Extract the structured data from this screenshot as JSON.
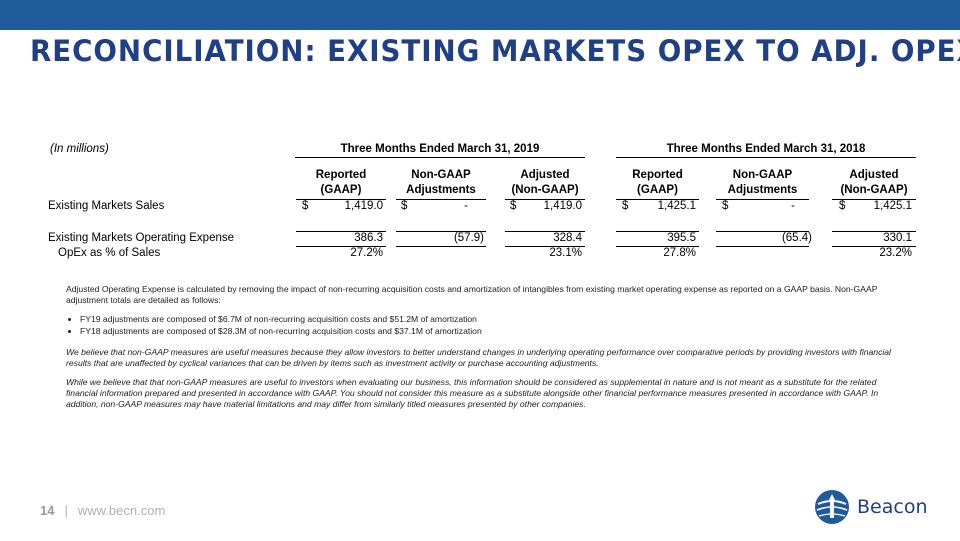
{
  "title": "RECONCILIATION: EXISTING MARKETS OPEX TO ADJ. OPEX",
  "table": {
    "unit_note": "(In millions)",
    "periods": [
      "Three Months Ended March 31, 2019",
      "Three Months Ended March 31, 2018"
    ],
    "columns": [
      {
        "line1": "Reported",
        "line2": "(GAAP)"
      },
      {
        "line1": "Non-GAAP",
        "line2": "Adjustments"
      },
      {
        "line1": "Adjusted",
        "line2": "(Non-GAAP)"
      },
      {
        "line1": "Reported",
        "line2": "(GAAP)"
      },
      {
        "line1": "Non-GAAP",
        "line2": "Adjustments"
      },
      {
        "line1": "Adjusted",
        "line2": "(Non-GAAP)"
      }
    ],
    "currency": "$",
    "rows": [
      {
        "label": "Existing Markets Sales",
        "values": [
          "1,419.0",
          "-",
          "1,419.0",
          "1,425.1",
          "-",
          "1,425.1"
        ]
      },
      {
        "label": "Existing Markets Operating Expense",
        "values": [
          "386.3",
          "(57.9)",
          "328.4",
          "395.5",
          "(65.4)",
          "330.1"
        ]
      },
      {
        "label": "OpEx as % of Sales",
        "values": [
          "27.2%",
          "",
          "23.1%",
          "27.8%",
          "",
          "23.2%"
        ]
      }
    ]
  },
  "notes": {
    "definition": "Adjusted Operating Expense is calculated by removing the impact of non-recurring acquisition costs and amortization of intangibles from existing market operating expense as reported on a GAAP basis. Non-GAAP adjustment totals are detailed as follows:",
    "bullets": [
      "FY19 adjustments are composed of $6.7M of non-recurring acquisition costs and $51.2M of amortization",
      "FY18 adjustments are composed of $28.3M of non-recurring acquisition costs and $37.1M of amortization"
    ],
    "belief": "We believe that non-GAAP measures are useful measures because they allow investors to better understand changes in underlying operating performance over comparative periods by providing investors with financial results that are unaffected by cyclical variances that can be driven by items such as investment activity or purchase accounting adjustments.",
    "caveat": "While we believe that that non-GAAP measures are useful to investors when evaluating our business, this information should be considered as supplemental in nature and is not meant as a substitute for the related financial information prepared and presented in accordance with GAAP. You should not consider this measure as a substitute alongside other financial performance measures presented in accordance with GAAP. In addition, non-GAAP measures may have material limitations and may differ from similarly titled measures presented by other companies."
  },
  "footer": {
    "page": "14",
    "separator": "|",
    "url": "www.becn.com"
  },
  "logo": {
    "name": "Beacon"
  },
  "colors": {
    "bar": "#1f5a9a",
    "title": "#1f3f86"
  }
}
